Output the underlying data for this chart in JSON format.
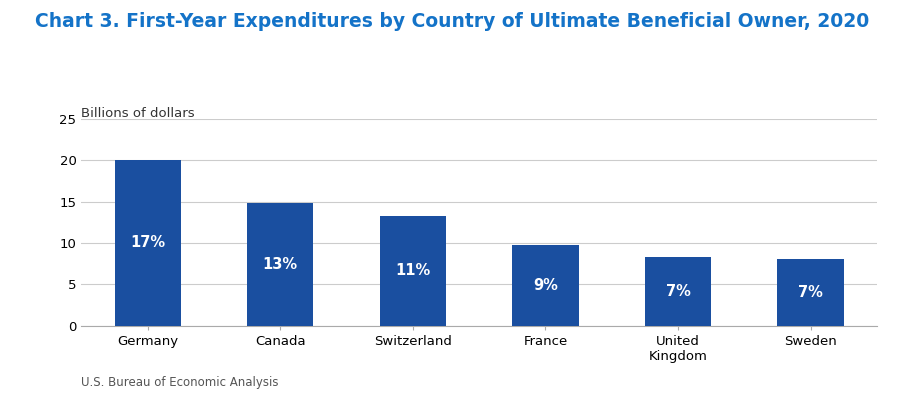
{
  "title": "Chart 3. First-Year Expenditures by Country of Ultimate Beneficial Owner, 2020",
  "ylabel": "Billions of dollars",
  "source": "U.S. Bureau of Economic Analysis",
  "categories": [
    "Germany",
    "Canada",
    "Switzerland",
    "France",
    "United\nKingdom",
    "Sweden"
  ],
  "values": [
    20.0,
    14.8,
    13.3,
    9.8,
    8.3,
    8.0
  ],
  "labels": [
    "17%",
    "13%",
    "11%",
    "9%",
    "7%",
    "7%"
  ],
  "bar_color": "#1A4FA0",
  "title_color": "#1473C8",
  "ylabel_color": "#333333",
  "source_color": "#555555",
  "ylim": [
    0,
    25
  ],
  "yticks": [
    0,
    5,
    10,
    15,
    20,
    25
  ],
  "title_fontsize": 13.5,
  "ylabel_fontsize": 9.5,
  "label_fontsize": 10.5,
  "source_fontsize": 8.5,
  "tick_fontsize": 9.5,
  "background_color": "#ffffff",
  "grid_color": "#cccccc"
}
